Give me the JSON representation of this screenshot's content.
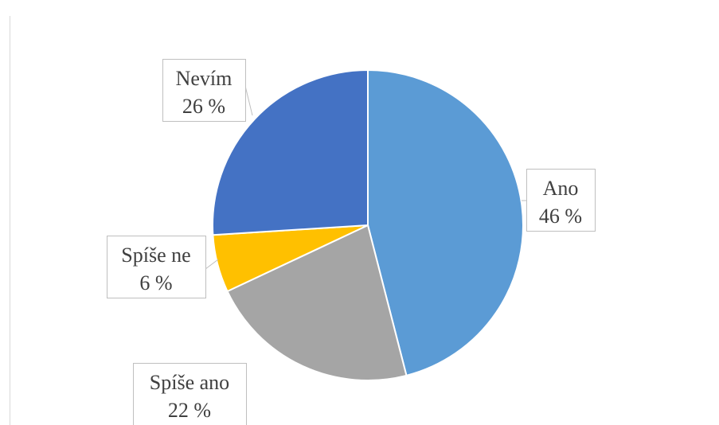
{
  "chart_data": {
    "type": "pie",
    "title": "",
    "slices": [
      {
        "label": "Ano",
        "value": 46,
        "value_text": "46 %",
        "color": "#5B9BD5"
      },
      {
        "label": "Spíše ano",
        "value": 22,
        "value_text": "22 %",
        "color": "#A5A5A5"
      },
      {
        "label": "Spíše ne",
        "value": 6,
        "value_text": "6 %",
        "color": "#FFC000"
      },
      {
        "label": "Nevím",
        "value": 26,
        "value_text": "26 %",
        "color": "#4472C4"
      }
    ],
    "data_labels": "callout",
    "legend": "none",
    "colors": {
      "slice_border": "#ffffff",
      "callout_border": "#BFBFBF",
      "text": "#404040",
      "frame": "#D9D9D9"
    }
  }
}
